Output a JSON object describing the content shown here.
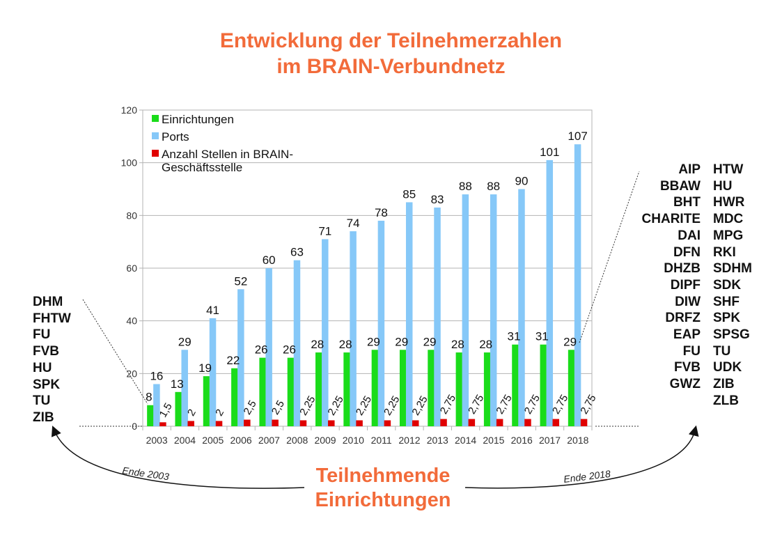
{
  "title": {
    "line1": "Entwicklung der Teilnehmerzahlen",
    "line2": "im BRAIN-Verbundnetz"
  },
  "chart_data": {
    "type": "bar",
    "categories": [
      "2003",
      "2004",
      "2005",
      "2006",
      "2007",
      "2008",
      "2009",
      "2010",
      "2011",
      "2012",
      "2013",
      "2014",
      "2015",
      "2016",
      "2017",
      "2018"
    ],
    "series": [
      {
        "name": "Einrichtungen",
        "color": "#1adc1a",
        "values": [
          8,
          13,
          19,
          22,
          26,
          26,
          28,
          28,
          29,
          29,
          29,
          28,
          28,
          31,
          31,
          29
        ],
        "labels": [
          "8",
          "13",
          "19",
          "22",
          "26",
          "26",
          "28",
          "28",
          "29",
          "29",
          "29",
          "28",
          "28",
          "31",
          "31",
          "29"
        ]
      },
      {
        "name": "Ports",
        "color": "#86c8f8",
        "values": [
          16,
          29,
          41,
          52,
          60,
          63,
          71,
          74,
          78,
          85,
          83,
          88,
          88,
          90,
          101,
          107
        ],
        "labels": [
          "16",
          "29",
          "41",
          "52",
          "60",
          "63",
          "71",
          "74",
          "78",
          "85",
          "83",
          "88",
          "88",
          "90",
          "101",
          "107"
        ]
      },
      {
        "name": "Anzahl Stellen in BRAIN-Geschäftsstelle",
        "color": "#e00000",
        "values": [
          1.5,
          2,
          2,
          2.5,
          2.5,
          2.25,
          2.25,
          2.25,
          2.25,
          2.25,
          2.75,
          2.75,
          2.75,
          2.75,
          2.75,
          2.75
        ],
        "labels": [
          "1,5",
          "2",
          "2",
          "2,5",
          "2,5",
          "2,25",
          "2,25",
          "2,25",
          "2,25",
          "2,25",
          "2,75",
          "2,75",
          "2,75",
          "2,75",
          "2,75",
          "2,75"
        ]
      }
    ],
    "legend": {
      "entry1": "Einrichtungen",
      "entry2": "Ports",
      "entry3_line1": "Anzahl Stellen in BRAIN-",
      "entry3_line2": "Geschäftsstelle"
    },
    "yticks": [
      0,
      20,
      40,
      60,
      80,
      100,
      120
    ],
    "ylim": [
      0,
      120
    ],
    "grid": true,
    "xlabel": "",
    "ylabel": ""
  },
  "left_list": [
    "DHM",
    "FHTW",
    "FU",
    "FVB",
    "HU",
    "SPK",
    "TU",
    "ZIB"
  ],
  "right_list_a": [
    "AIP",
    "BBAW",
    "BHT",
    "CHARITE",
    "DAI",
    "DFN",
    "DHZB",
    "DIPF",
    "DIW",
    "DRFZ",
    "EAP",
    "FU",
    "FVB",
    "GWZ"
  ],
  "right_list_b": [
    "HTW",
    "HU",
    "HWR",
    "MDC",
    "MPG",
    "RKI",
    "SDHM",
    "SDK",
    "SHF",
    "SPK",
    "SPSG",
    "TU",
    "UDK",
    "ZIB",
    "ZLB"
  ],
  "annotations": {
    "left": "Ende 2003",
    "right": "Ende 2018"
  },
  "bottom_title": {
    "line1": "Teilnehmende",
    "line2": "Einrichtungen"
  }
}
